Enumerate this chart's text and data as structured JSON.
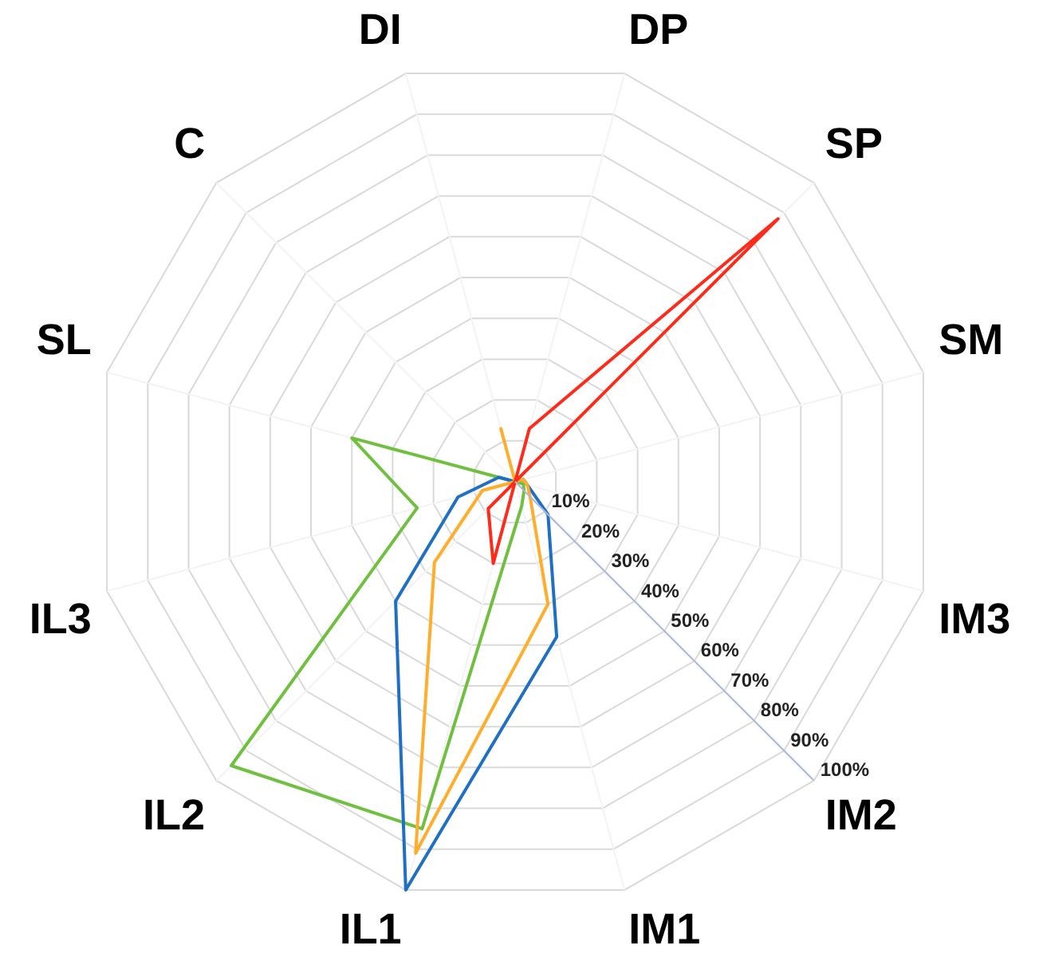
{
  "chart_data": {
    "type": "radar",
    "categories": [
      "DP",
      "SP",
      "SM",
      "IM3",
      "IM2",
      "IM1",
      "IL1",
      "IL2",
      "IL3",
      "SL",
      "C",
      "DI"
    ],
    "series": [
      {
        "color": "#ff2a1a",
        "values": [
          13,
          88,
          0,
          0,
          0,
          0,
          20,
          9,
          0,
          0,
          0,
          0
        ]
      },
      {
        "color": "#ffad2a",
        "values": [
          0,
          0,
          2,
          3,
          5,
          30,
          91,
          27,
          8,
          0,
          0,
          13
        ]
      },
      {
        "color": "#1f6fc5",
        "values": [
          0,
          0,
          2,
          3,
          11,
          38,
          100,
          40,
          14,
          4,
          0,
          0
        ]
      },
      {
        "color": "#70c040",
        "values": [
          0,
          0,
          0,
          2,
          3,
          6,
          85,
          95,
          24,
          40,
          0,
          0
        ]
      }
    ],
    "ylim": [
      0,
      100
    ],
    "yticks": [
      {
        "value": 10,
        "label": "10%"
      },
      {
        "value": 20,
        "label": "20%"
      },
      {
        "value": 30,
        "label": "30%"
      },
      {
        "value": 40,
        "label": "40%"
      },
      {
        "value": 50,
        "label": "50%"
      },
      {
        "value": 60,
        "label": "60%"
      },
      {
        "value": 70,
        "label": "70%"
      },
      {
        "value": 80,
        "label": "80%"
      },
      {
        "value": 90,
        "label": "90%"
      },
      {
        "value": 100,
        "label": "100%"
      }
    ],
    "grid": true,
    "legend": false,
    "marker": "none",
    "line_style": "solid"
  }
}
